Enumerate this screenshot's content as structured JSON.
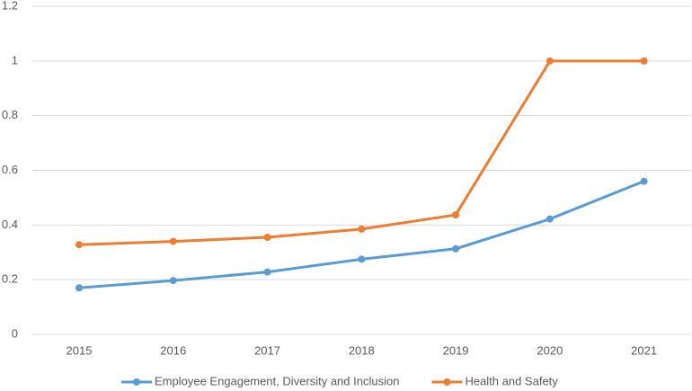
{
  "chart_data": {
    "type": "line",
    "categories": [
      "2015",
      "2016",
      "2017",
      "2018",
      "2019",
      "2020",
      "2021"
    ],
    "series": [
      {
        "name": "Employee Engagement, Diversity and Inclusion",
        "color": "#5b9bd5",
        "values": [
          0.17,
          0.197,
          0.228,
          0.275,
          0.313,
          0.422,
          0.56
        ]
      },
      {
        "name": "Health and Safety",
        "color": "#ed7d31",
        "values": [
          0.328,
          0.34,
          0.355,
          0.385,
          0.437,
          1.0,
          1.0
        ]
      }
    ],
    "ylim": [
      0,
      1.2
    ],
    "yticks": [
      0,
      0.2,
      0.4,
      0.6,
      0.8,
      1,
      1.2
    ],
    "grid": true,
    "legend": "bottom"
  }
}
